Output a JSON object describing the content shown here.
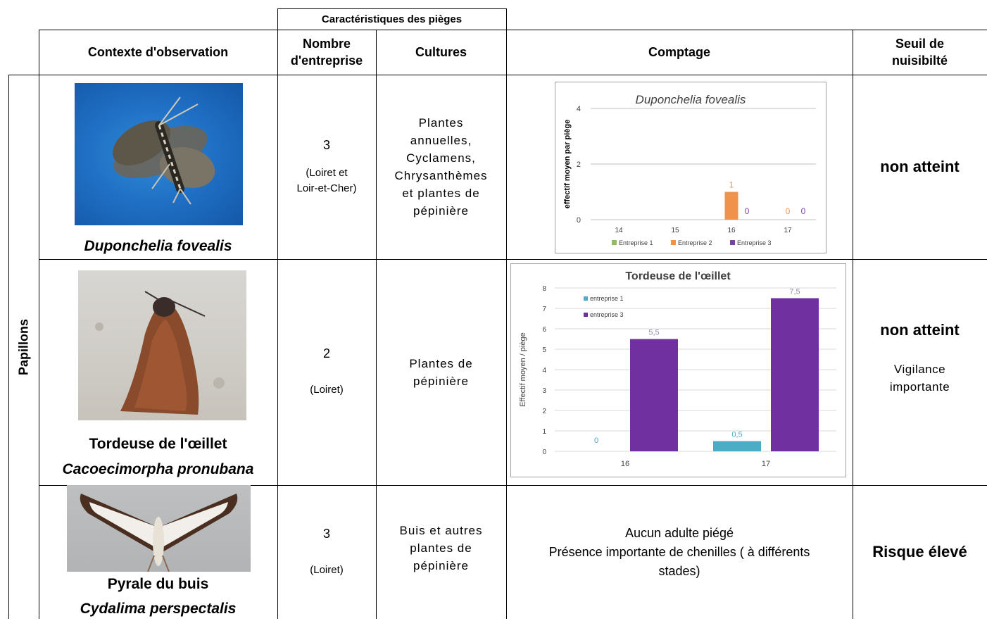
{
  "header": {
    "group_label": "Caractéristiques des pièges",
    "col_context": "Contexte d'observation",
    "col_count_line1": "Nombre",
    "col_count_line2": "d'entreprise",
    "col_crops": "Cultures",
    "col_counting": "Comptage",
    "col_threshold_line1": "Seuil de",
    "col_threshold_line2": "nuisibilté"
  },
  "category": "Papillons",
  "rows": [
    {
      "species_common": "",
      "species_latin": "Duponchelia fovealis",
      "count": "3",
      "count_detail_line1": "(Loiret et",
      "count_detail_line2": "Loir-et-Cher)",
      "crops": [
        "Plantes",
        "annuelles,",
        "Cyclamens,",
        "Chrysanthèmes",
        "et plantes de",
        "pépinière"
      ],
      "threshold": "non atteint",
      "threshold_note": ""
    },
    {
      "species_common": "Tordeuse de l'œillet",
      "species_latin": "Cacoecimorpha pronubana",
      "count": "2",
      "count_detail_line1": "(Loiret)",
      "count_detail_line2": "",
      "crops": [
        "Plantes de",
        "pépinière"
      ],
      "threshold": "non atteint",
      "threshold_note_line1": "Vigilance",
      "threshold_note_line2": "importante"
    },
    {
      "species_common": "Pyrale du buis",
      "species_latin": "Cydalima perspectalis",
      "count": "3",
      "count_detail_line1": "(Loiret)",
      "count_detail_line2": "",
      "crops": [
        "Buis et autres",
        "plantes de",
        "pépinière"
      ],
      "counting_line1": "Aucun adulte piégé",
      "counting_line2": "Présence importante de chenilles ( à différents",
      "counting_line3": "stades)",
      "threshold": "Risque élevé"
    }
  ],
  "chart_data": [
    {
      "type": "bar",
      "title": "Duponchelia fovealis",
      "ylabel": "effectif moyen par piège",
      "xlabel": "",
      "categories": [
        "14",
        "15",
        "16",
        "17"
      ],
      "ylim": [
        0,
        4
      ],
      "yticks": [
        "0",
        "2",
        "4"
      ],
      "series": [
        {
          "name": "Entreprise 1",
          "color": "#8fc156",
          "values": [
            null,
            null,
            null,
            null
          ],
          "labels": [
            "",
            "",
            "",
            ""
          ]
        },
        {
          "name": "Entreprise 2",
          "color": "#f0924a",
          "values": [
            null,
            null,
            1,
            0
          ],
          "labels": [
            "",
            "",
            "1",
            "0"
          ]
        },
        {
          "name": "Entreprise 3",
          "color": "#7b3fae",
          "values": [
            null,
            null,
            0,
            0
          ],
          "labels": [
            "",
            "",
            "0",
            "0"
          ]
        }
      ],
      "grid": true,
      "legend": "bottom"
    },
    {
      "type": "bar",
      "title": "Tordeuse de l'œillet",
      "ylabel": "Effectif moyen / piège",
      "xlabel": "",
      "categories": [
        "16",
        "17"
      ],
      "ylim": [
        0,
        8
      ],
      "yticks": [
        "0",
        "1",
        "2",
        "3",
        "4",
        "5",
        "6",
        "7",
        "8"
      ],
      "series": [
        {
          "name": "entreprise 1",
          "color": "#4bacc6",
          "values": [
            0,
            0.5
          ],
          "labels": [
            "0",
            "0,5"
          ]
        },
        {
          "name": "entreprise 3",
          "color": "#7030a0",
          "values": [
            5.5,
            7.5
          ],
          "labels": [
            "5,5",
            "7,5"
          ]
        }
      ],
      "grid": true,
      "legend": "top-left"
    }
  ]
}
